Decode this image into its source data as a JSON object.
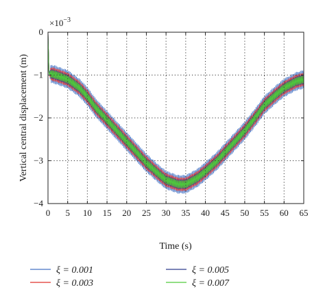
{
  "chart_data": {
    "type": "line",
    "title": "",
    "xlabel": "Time (s)",
    "ylabel": "Vertical central displacement (m)",
    "y_multiplier": "×10",
    "y_multiplier_exponent": "−3",
    "xlim": [
      0,
      65
    ],
    "ylim": [
      -4,
      0
    ],
    "x_ticks": [
      0,
      5,
      10,
      15,
      20,
      25,
      30,
      35,
      40,
      45,
      50,
      55,
      60,
      65
    ],
    "x_tick_labels": [
      "0",
      "5",
      "10",
      "15",
      "20",
      "25",
      "30",
      "35",
      "40",
      "45",
      "50",
      "55",
      "60",
      "65"
    ],
    "y_ticks": [
      0,
      -1,
      -2,
      -3,
      -4
    ],
    "y_tick_labels": [
      "0",
      "−1",
      "−2",
      "−3",
      "−4"
    ],
    "grid": "dotted",
    "legend_position": "bottom, outside plot, two columns",
    "mean_curve": {
      "x": [
        0,
        2,
        5,
        8,
        10,
        12,
        15,
        18,
        20,
        23,
        25,
        28,
        30,
        33,
        35,
        38,
        40,
        43,
        45,
        48,
        50,
        53,
        55,
        58,
        60,
        63,
        65
      ],
      "y": [
        -0.95,
        -1.0,
        -1.1,
        -1.3,
        -1.5,
        -1.75,
        -2.05,
        -2.35,
        -2.55,
        -2.85,
        -3.05,
        -3.3,
        -3.45,
        -3.55,
        -3.55,
        -3.4,
        -3.25,
        -3.0,
        -2.8,
        -2.5,
        -2.3,
        -1.95,
        -1.7,
        -1.45,
        -1.3,
        -1.15,
        -1.1
      ]
    },
    "series": [
      {
        "name": "ξ = 0.001",
        "color": "#4472c4",
        "oscillation_amplitude": 0.22
      },
      {
        "name": "ξ = 0.003",
        "color": "#e0302a",
        "oscillation_amplitude": 0.16
      },
      {
        "name": "ξ = 0.005",
        "color": "#2d3a8c",
        "oscillation_amplitude": 0.11
      },
      {
        "name": "ξ = 0.007",
        "color": "#4fc93b",
        "oscillation_amplitude": 0.09
      }
    ]
  }
}
